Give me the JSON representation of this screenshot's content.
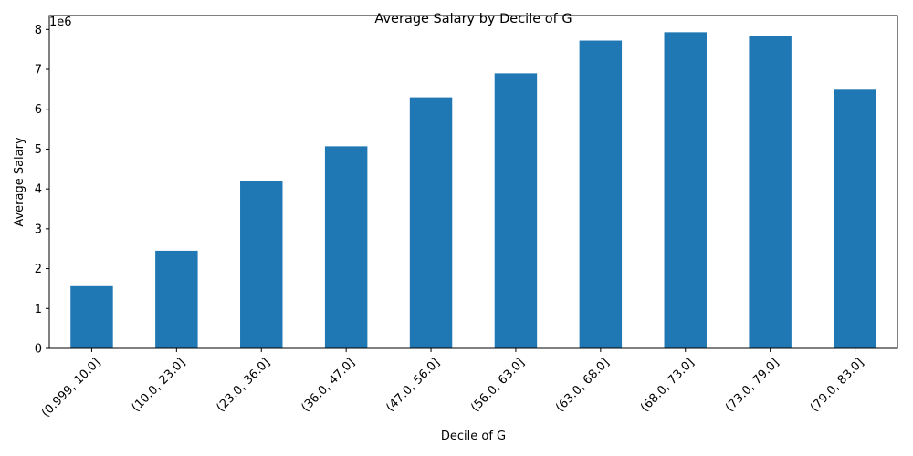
{
  "chart_data": {
    "type": "bar",
    "title": "Average Salary by Decile of G",
    "xlabel": "Decile of G",
    "ylabel": "Average Salary",
    "y_offset_label": "1e6",
    "y_scale_factor": 1000000,
    "categories": [
      "(0.999, 10.0]",
      "(10.0, 23.0]",
      "(23.0, 36.0]",
      "(36.0, 47.0]",
      "(47.0, 56.0]",
      "(56.0, 63.0]",
      "(63.0, 68.0]",
      "(68.0, 73.0]",
      "(73.0, 79.0]",
      "(79.0, 83.0]"
    ],
    "values": [
      1560000,
      2450000,
      4200000,
      5070000,
      6300000,
      6900000,
      7720000,
      7930000,
      7840000,
      6490000
    ],
    "ylim": [
      0,
      8350000
    ],
    "yticks": [
      0,
      1,
      2,
      3,
      4,
      5,
      6,
      7,
      8
    ],
    "bar_color": "#1f77b4",
    "grid": false,
    "legend": "none"
  }
}
